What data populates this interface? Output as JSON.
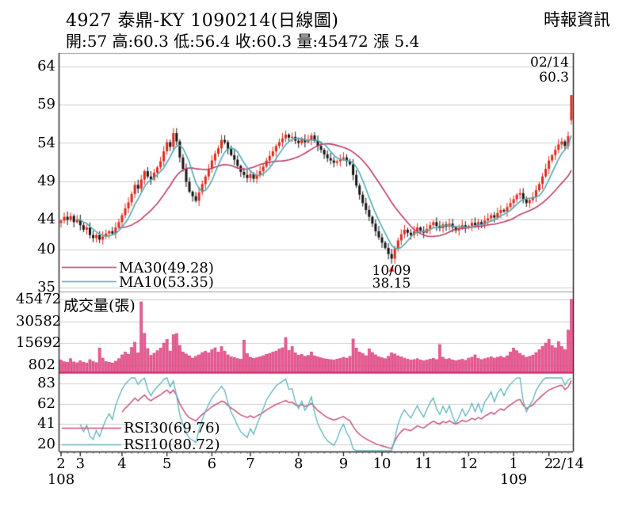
{
  "header": {
    "title": "4927 泰鼎-KY 1090214(日線圖)",
    "source": "時報資訊",
    "quote": "開:57 高:60.3 低:56.4 收:60.3 量:45472 漲 5.4"
  },
  "legends": {
    "ma_slow": "MA30(49.28)",
    "ma_fast": "MA10(53.35)",
    "volume": "成交量(張)",
    "rsi_slow": "RSI30(69.76)",
    "rsi_fast": "RSI10(80.72)"
  },
  "annotations": {
    "low_date": "10/09",
    "low_price": "38.15",
    "high_date": "02/14",
    "high_price": "60.3"
  },
  "colors": {
    "candle_up": "#e02a1c",
    "candle_down": "#161616",
    "ma_slow": "#c23a6a",
    "ma_fast": "#52a9b4",
    "volume_fill": "#ec5e96",
    "volume_edge": "#c72a68",
    "rsi_slow": "#c8537d",
    "rsi_fast": "#5fb3bd",
    "legend_pink": "#cc2360",
    "legend_teal": "#1793ab",
    "grid": "#cfcfcf",
    "axis": "#222222",
    "marker_red": "#e02020"
  },
  "chart_data": {
    "type": "candlestick",
    "title": "4927 泰鼎-KY 1090214(日線圖)",
    "panels": [
      "price+MA30+MA10",
      "volume",
      "RSI30+RSI10"
    ],
    "price_axis": {
      "ticks": [
        64,
        59,
        54,
        49,
        44,
        40,
        35
      ],
      "range": [
        35,
        65.4
      ],
      "grid": true
    },
    "volume_axis": {
      "ticks": [
        45472,
        30582,
        15692,
        802
      ],
      "grid": true
    },
    "rsi_axis": {
      "ticks": [
        83,
        62,
        41,
        20
      ],
      "range": [
        15,
        90
      ],
      "grid": true
    },
    "x_axis": {
      "month_labels": [
        {
          "label": "2",
          "idx": 0
        },
        {
          "label": "3",
          "idx": 6
        },
        {
          "label": "4",
          "idx": 19
        },
        {
          "label": "5",
          "idx": 33
        },
        {
          "label": "6",
          "idx": 47
        },
        {
          "label": "7",
          "idx": 59
        },
        {
          "label": "8",
          "idx": 74
        },
        {
          "label": "9",
          "idx": 88
        },
        {
          "label": "10",
          "idx": 100
        },
        {
          "label": "11",
          "idx": 113
        },
        {
          "label": "12",
          "idx": 127
        },
        {
          "label": "1",
          "idx": 141
        },
        {
          "label": "2",
          "idx": 152
        },
        {
          "label": "2/14",
          "idx": 158,
          "tick": false
        }
      ],
      "year_labels": [
        {
          "label": "108",
          "idx": 0
        },
        {
          "label": "109",
          "idx": 141
        }
      ]
    },
    "closes": [
      43.8,
      44.3,
      43.9,
      44.4,
      43.6,
      43.9,
      43.2,
      42.6,
      42.9,
      41.9,
      41.5,
      41.9,
      41.3,
      41.7,
      42.1,
      42.4,
      42.1,
      42.9,
      43.6,
      44.5,
      45.4,
      46.2,
      47.3,
      48.5,
      48.0,
      49.2,
      50.3,
      49.6,
      49.2,
      50.1,
      50.8,
      51.6,
      52.9,
      54.1,
      53.5,
      55.3,
      54.2,
      52.1,
      50.6,
      48.9,
      47.6,
      47.0,
      46.4,
      47.5,
      48.6,
      49.6,
      50.6,
      51.7,
      52.6,
      53.3,
      54.4,
      54.1,
      53.2,
      52.4,
      51.8,
      51.0,
      50.2,
      49.8,
      49.4,
      49.9,
      49.3,
      49.8,
      50.3,
      50.9,
      51.7,
      52.3,
      52.9,
      53.6,
      54.1,
      54.6,
      55.1,
      54.7,
      54.8,
      54.3,
      54.0,
      54.5,
      54.1,
      54.4,
      55.0,
      54.3,
      53.6,
      53.1,
      52.5,
      52.0,
      51.7,
      51.4,
      51.6,
      51.9,
      52.1,
      51.6,
      51.2,
      49.8,
      48.4,
      47.2,
      46.1,
      45.2,
      44.3,
      43.4,
      42.4,
      41.6,
      40.9,
      40.2,
      39.4,
      38.8,
      40.1,
      41.2,
      42.0,
      42.6,
      42.2,
      41.9,
      42.4,
      42.9,
      42.5,
      42.2,
      42.7,
      43.2,
      43.6,
      43.1,
      42.8,
      43.3,
      43.0,
      43.4,
      42.9,
      42.5,
      42.8,
      43.2,
      42.9,
      43.1,
      43.5,
      43.2,
      43.6,
      43.3,
      43.8,
      44.1,
      44.5,
      44.2,
      44.8,
      45.2,
      45.0,
      45.6,
      46.1,
      46.6,
      47.2,
      47.4,
      46.6,
      46.1,
      46.5,
      46.9,
      47.8,
      48.6,
      49.6,
      50.6,
      51.7,
      52.4,
      53.1,
      53.8,
      54.2,
      53.6,
      54.9,
      60.3
    ],
    "volumes": [
      4200,
      3100,
      2600,
      5200,
      3000,
      2400,
      3800,
      2900,
      2300,
      4600,
      3400,
      2500,
      12500,
      5600,
      3200,
      2700,
      2300,
      3500,
      5200,
      7800,
      9600,
      8200,
      12800,
      16400,
      9200,
      43800,
      22400,
      12100,
      7400,
      8900,
      10600,
      12400,
      15800,
      18200,
      10400,
      21600,
      22300,
      14200,
      9800,
      8400,
      7200,
      5600,
      6800,
      7800,
      9400,
      10200,
      9100,
      11200,
      12600,
      9800,
      13400,
      10200,
      7800,
      6400,
      5900,
      5200,
      4800,
      17800,
      8600,
      6200,
      5400,
      5800,
      6400,
      7200,
      8100,
      8800,
      9600,
      10400,
      11800,
      12600,
      19600,
      10800,
      13400,
      9200,
      7600,
      8200,
      6800,
      7400,
      9800,
      7200,
      6400,
      5800,
      5200,
      4900,
      4600,
      4200,
      4800,
      5400,
      6200,
      5600,
      6800,
      18600,
      12400,
      9800,
      8600,
      7200,
      11800,
      9400,
      7800,
      6400,
      5800,
      5200,
      6800,
      9200,
      8400,
      7200,
      6400,
      5600,
      4800,
      4200,
      4600,
      5200,
      4400,
      3800,
      4200,
      4800,
      5400,
      4600,
      14800,
      6200,
      4800,
      5200,
      4400,
      3900,
      4200,
      4800,
      4100,
      5600,
      6200,
      7800,
      5400,
      4600,
      5200,
      5800,
      6400,
      5600,
      6200,
      6800,
      5900,
      7200,
      9800,
      12400,
      10600,
      8800,
      7400,
      6200,
      6800,
      7600,
      9400,
      11200,
      13600,
      15800,
      18400,
      14200,
      12600,
      16800,
      13400,
      11200,
      24600,
      45472
    ],
    "last_candle": {
      "open": 57,
      "high": 60.3,
      "low": 56.4,
      "close": 60.3,
      "volume": 45472
    },
    "low_candle": {
      "index": 103,
      "low": 38.15,
      "date": "10/09"
    },
    "ma": {
      "fast_window": 6,
      "slow_window": 19,
      "fast_label": "MA10(53.35)",
      "slow_label": "MA30(49.28)"
    },
    "rsi": {
      "fast_window": 6,
      "slow_window": 19,
      "fast_label": "RSI10(80.72)",
      "slow_label": "RSI30(69.76)"
    },
    "volume_label": "成交量(張)"
  }
}
